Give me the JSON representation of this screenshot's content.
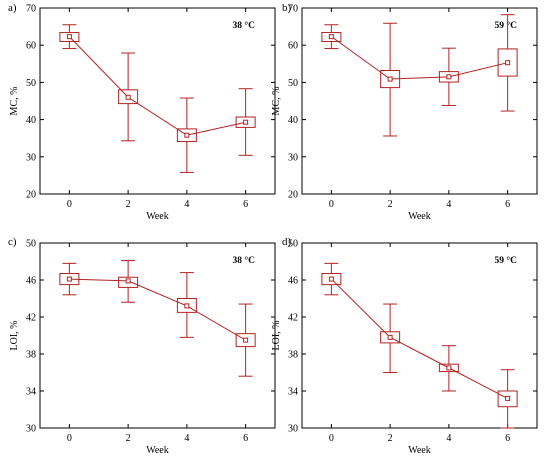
{
  "colors": {
    "series": "#b22222",
    "axis": "#000000",
    "background": "#ffffff"
  },
  "chart_data": [
    {
      "type": "box",
      "panel_label": "a)",
      "annotation": "38 °C",
      "xlabel": "Week",
      "ylabel": "MC, %",
      "xticks": [
        "0",
        "2",
        "4",
        "6"
      ],
      "yticks": [
        "20",
        "30",
        "40",
        "50",
        "60",
        "70"
      ],
      "xlim": [
        -1,
        7
      ],
      "ylim": [
        20,
        70
      ],
      "x": [
        0,
        2,
        4,
        6
      ],
      "mean": [
        62.3,
        46.0,
        35.8,
        39.3
      ],
      "box_low": [
        61.0,
        44.3,
        34.1,
        37.9
      ],
      "box_high": [
        63.4,
        48.0,
        37.5,
        40.7
      ],
      "whisker_low": [
        59.1,
        34.3,
        25.8,
        30.4
      ],
      "whisker_high": [
        65.5,
        57.9,
        45.8,
        48.3
      ]
    },
    {
      "type": "box",
      "panel_label": "b)",
      "annotation": "59 °C",
      "xlabel": "Week",
      "ylabel": "MC, %",
      "xticks": [
        "0",
        "2",
        "4",
        "6"
      ],
      "yticks": [
        "20",
        "30",
        "40",
        "50",
        "60",
        "70"
      ],
      "xlim": [
        -1,
        7
      ],
      "ylim": [
        20,
        70
      ],
      "x": [
        0,
        2,
        4,
        6
      ],
      "mean": [
        62.3,
        50.9,
        51.5,
        55.3
      ],
      "box_low": [
        61.0,
        48.6,
        50.1,
        51.7
      ],
      "box_high": [
        63.4,
        53.2,
        52.9,
        59.0
      ],
      "whisker_low": [
        59.1,
        35.6,
        43.8,
        42.3
      ],
      "whisker_high": [
        65.5,
        65.9,
        59.2,
        68.2
      ]
    },
    {
      "type": "box",
      "panel_label": "c)",
      "annotation": "38 °C",
      "xlabel": "Week",
      "ylabel": "LOI, %",
      "xticks": [
        "0",
        "2",
        "4",
        "6"
      ],
      "yticks": [
        "30",
        "34",
        "38",
        "42",
        "46",
        "50"
      ],
      "xlim": [
        -1,
        7
      ],
      "ylim": [
        30,
        50
      ],
      "x": [
        0,
        2,
        4,
        6
      ],
      "mean": [
        46.1,
        45.9,
        43.2,
        39.5
      ],
      "box_low": [
        45.5,
        45.2,
        42.5,
        38.8
      ],
      "box_high": [
        46.7,
        46.3,
        44.0,
        40.2
      ],
      "whisker_low": [
        44.4,
        43.6,
        39.8,
        35.6
      ],
      "whisker_high": [
        47.8,
        48.1,
        46.8,
        43.4
      ]
    },
    {
      "type": "box",
      "panel_label": "d)",
      "annotation": "59 °C",
      "xlabel": "Week",
      "ylabel": "LOI, %",
      "xticks": [
        "0",
        "2",
        "4",
        "6"
      ],
      "yticks": [
        "30",
        "34",
        "38",
        "42",
        "46",
        "50"
      ],
      "xlim": [
        -1,
        7
      ],
      "ylim": [
        30,
        50
      ],
      "x": [
        0,
        2,
        4,
        6
      ],
      "mean": [
        46.1,
        39.8,
        36.5,
        33.2
      ],
      "box_low": [
        45.5,
        39.2,
        36.1,
        32.3
      ],
      "box_high": [
        46.7,
        40.4,
        36.9,
        34.0
      ],
      "whisker_low": [
        44.4,
        36.0,
        34.0,
        30.0
      ],
      "whisker_high": [
        47.8,
        43.4,
        38.9,
        36.3
      ]
    }
  ]
}
